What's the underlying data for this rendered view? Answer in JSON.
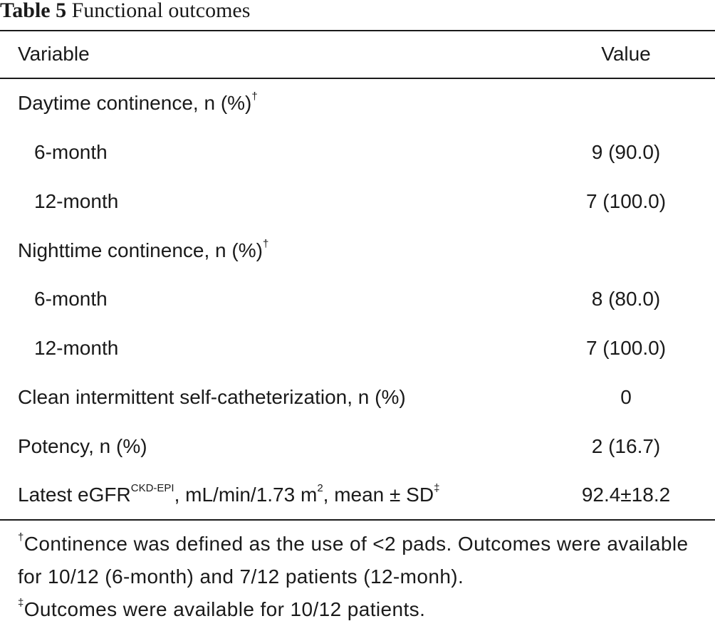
{
  "caption": {
    "label": "Table 5",
    "title": "Functional outcomes"
  },
  "header": {
    "variable": "Variable",
    "value": "Value"
  },
  "rows": [
    {
      "label": "Daytime continence, n (%)",
      "sup": "†",
      "value": ""
    },
    {
      "label": "6-month",
      "sup": "",
      "value": "9 (90.0)"
    },
    {
      "label": "12-month",
      "sup": "",
      "value": "7 (100.0)"
    },
    {
      "label": "Nighttime continence, n (%)",
      "sup": "†",
      "value": ""
    },
    {
      "label": "6-month",
      "sup": "",
      "value": "8 (80.0)"
    },
    {
      "label": "12-month",
      "sup": "",
      "value": "7 (100.0)"
    },
    {
      "label": "Clean intermittent self-catheterization, n (%)",
      "sup": "",
      "value": "0"
    },
    {
      "label": "Potency, n (%)",
      "sup": "",
      "value": "2 (16.7)"
    }
  ],
  "egfr_row": {
    "prefix": "Latest eGFR",
    "sup1": "CKD-EPI",
    "middle": ", mL/min/1.73 m",
    "sup2": "2",
    "suffix": ", mean ± SD",
    "sup3": "‡",
    "value": "92.4±18.2"
  },
  "footnotes": [
    {
      "mark": "†",
      "text": "Continence was defined as the use of <2 pads. Outcomes were available for 10/12 (6-month) and 7/12 patients (12-monh)."
    },
    {
      "mark": "‡",
      "text": "Outcomes were available for 10/12 patients."
    }
  ]
}
